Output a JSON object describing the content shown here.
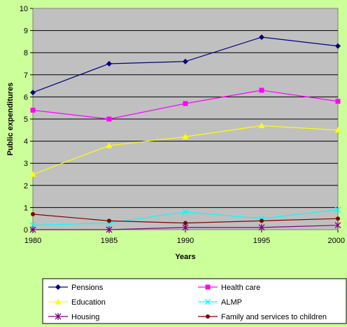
{
  "chart_data": {
    "type": "line",
    "title": "",
    "xlabel": "Years",
    "ylabel": "Public expenditures",
    "x": [
      1980,
      1985,
      1990,
      1995,
      2000
    ],
    "ylim": [
      0,
      10
    ],
    "yticks": [
      0,
      1,
      2,
      3,
      4,
      5,
      6,
      7,
      8,
      9,
      10
    ],
    "grid": true,
    "legend_position": "bottom",
    "plot_background": "#c0c0c0",
    "series": [
      {
        "name": "Pensions",
        "color": "#000080",
        "marker": "diamond",
        "values": [
          6.2,
          7.5,
          7.6,
          8.7,
          8.3
        ]
      },
      {
        "name": "Health care",
        "color": "#ff00ff",
        "marker": "square",
        "values": [
          5.4,
          5.0,
          5.7,
          6.3,
          5.8
        ]
      },
      {
        "name": "Education",
        "color": "#ffff00",
        "marker": "triangle",
        "values": [
          2.5,
          3.8,
          4.2,
          4.7,
          4.5
        ]
      },
      {
        "name": "ALMP",
        "color": "#00ffff",
        "marker": "x",
        "values": [
          0.2,
          0.3,
          0.8,
          0.5,
          0.9
        ]
      },
      {
        "name": "Housing",
        "color": "#800080",
        "marker": "star",
        "values": [
          0.0,
          0.0,
          0.1,
          0.1,
          0.2
        ]
      },
      {
        "name": "Family and services to children",
        "color": "#800000",
        "marker": "circle",
        "values": [
          0.7,
          0.4,
          0.3,
          0.4,
          0.5
        ]
      }
    ]
  }
}
